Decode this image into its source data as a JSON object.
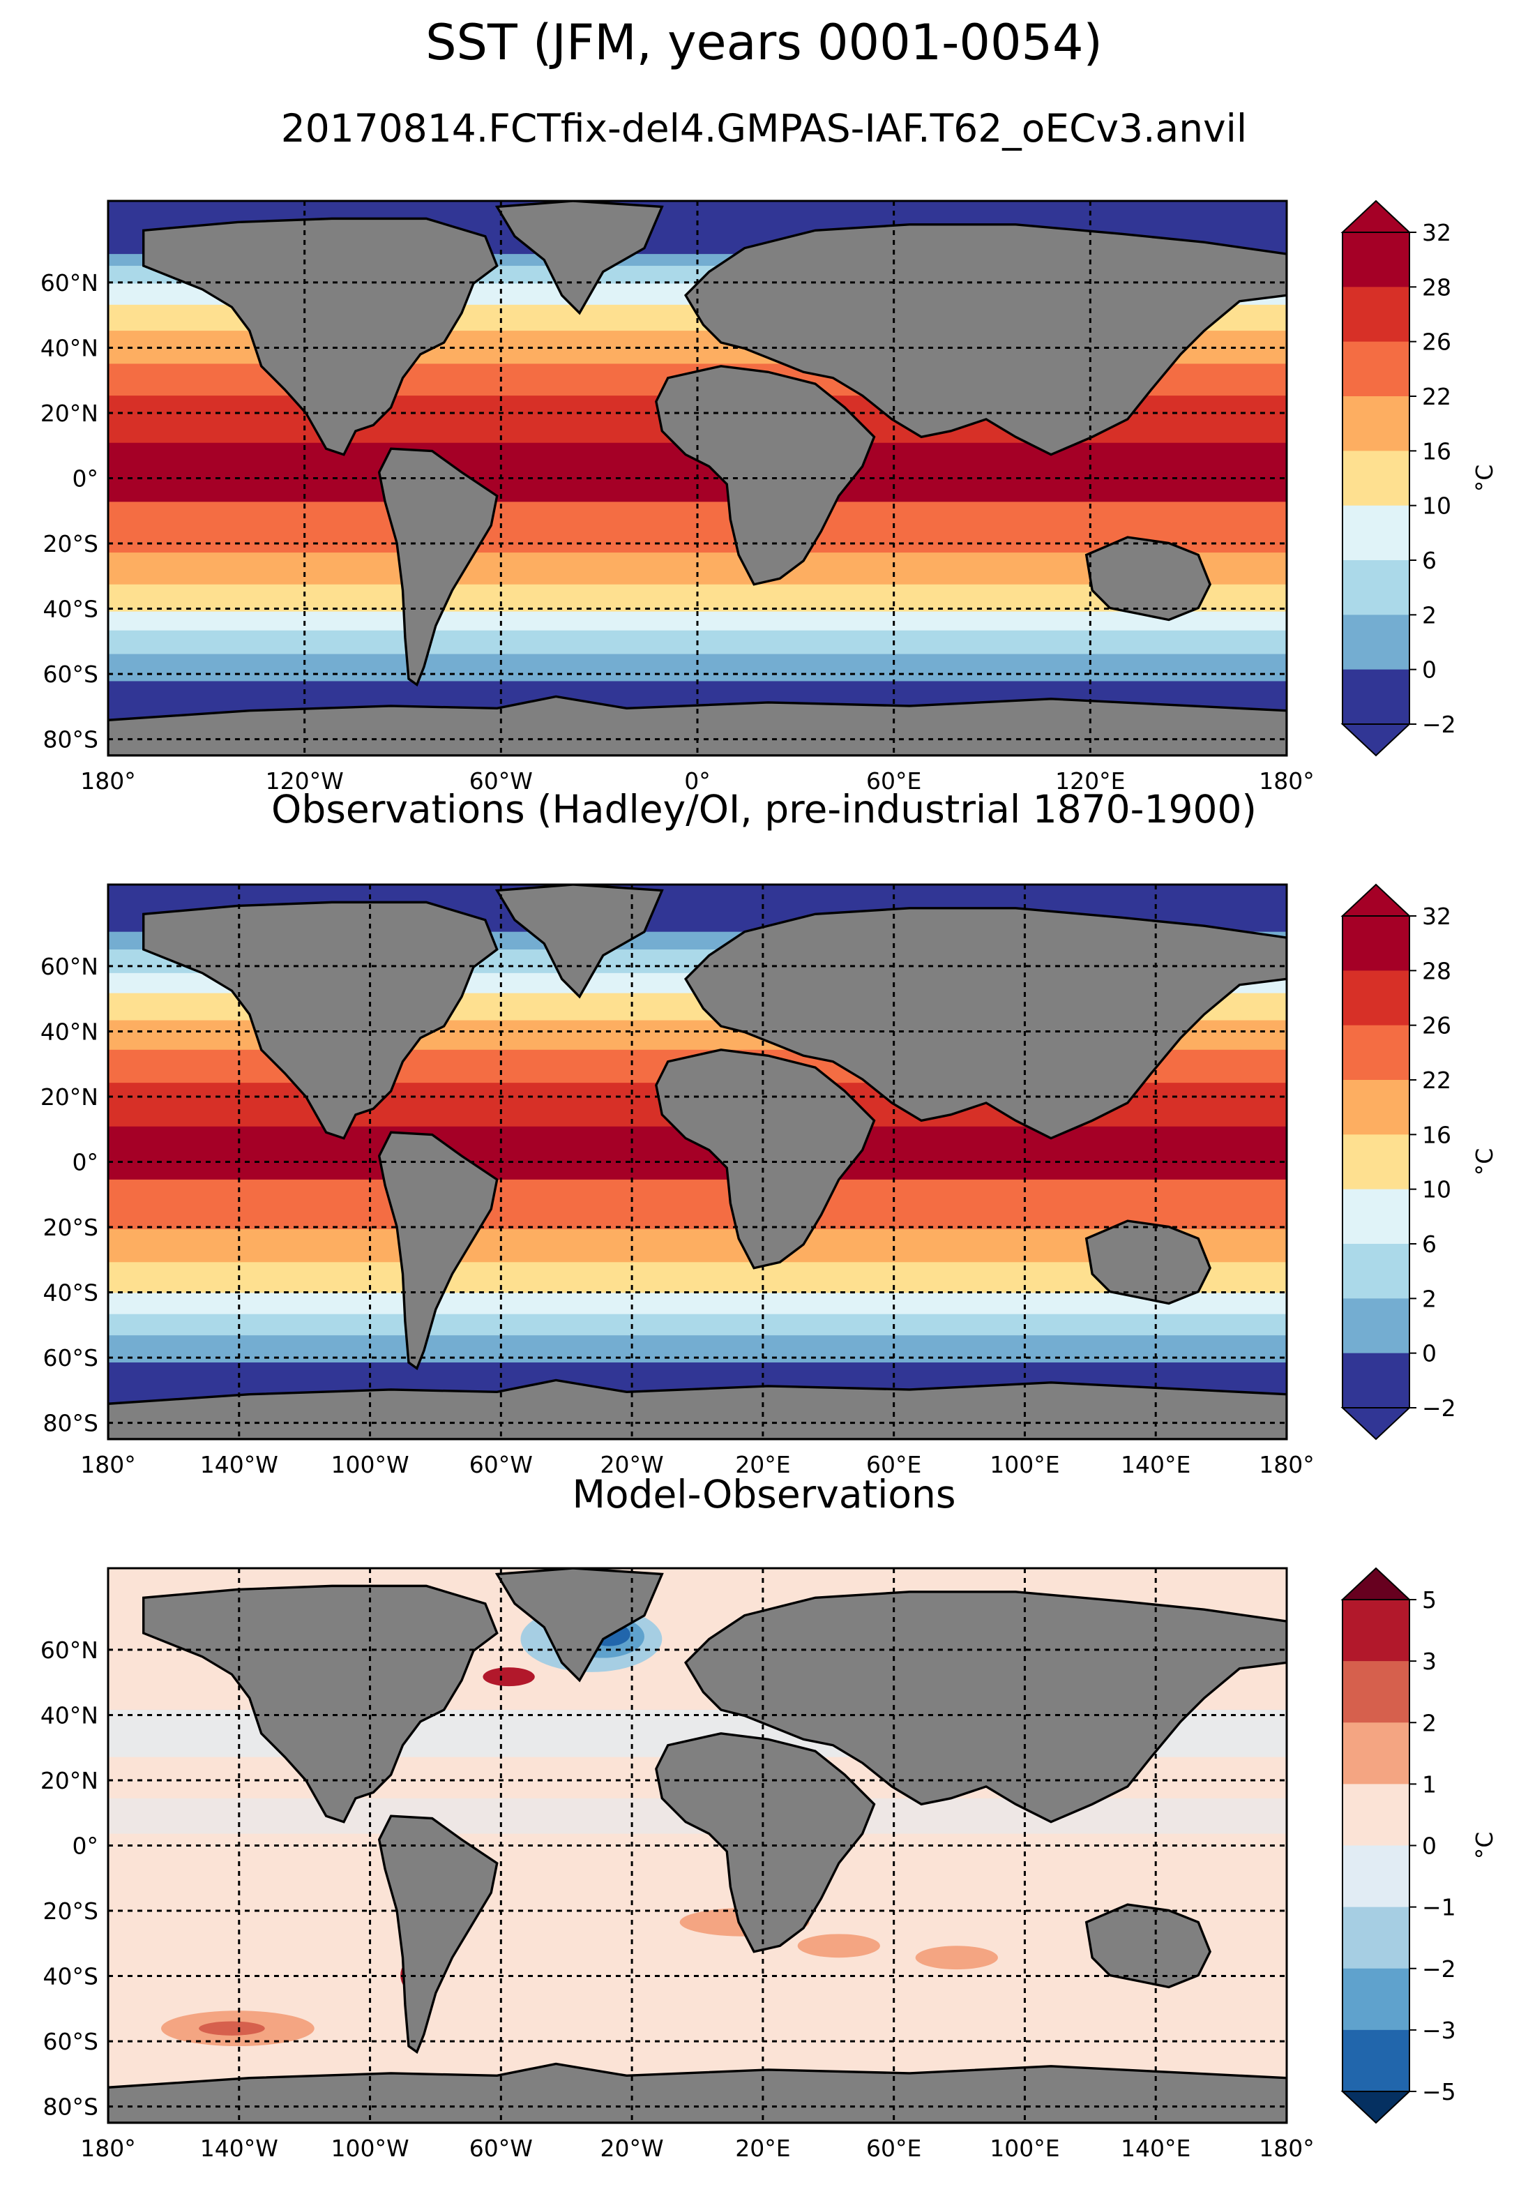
{
  "figure": {
    "title": "SST (JFM, years 0001-0054)",
    "subtitle": "20170814.FCTfix-del4.GMPAS-IAF.T62_oECv3.anvil",
    "land_color": "#808080"
  },
  "panels": [
    {
      "id": "model",
      "title": "",
      "lat_ticks": [
        "60°N",
        "40°N",
        "20°N",
        "0°",
        "20°S",
        "40°S",
        "60°S",
        "80°S"
      ],
      "lon_ticks": [
        "180°",
        "120°W",
        "60°W",
        "0°",
        "60°E",
        "120°E",
        "180°"
      ],
      "colorbar": {
        "unit": "°C",
        "levels": [
          "32",
          "28",
          "26",
          "22",
          "16",
          "10",
          "6",
          "2",
          "0",
          "−2"
        ],
        "colors": [
          "#a50026",
          "#d73027",
          "#f46d43",
          "#fdae61",
          "#fee090",
          "#e0f3f8",
          "#abd9e9",
          "#74add1",
          "#313695"
        ],
        "extend": "both"
      }
    },
    {
      "id": "obs",
      "title": "Observations (Hadley/OI, pre-industrial 1870-1900)",
      "lat_ticks": [
        "60°N",
        "40°N",
        "20°N",
        "0°",
        "20°S",
        "40°S",
        "60°S",
        "80°S"
      ],
      "lon_ticks": [
        "180°",
        "140°W",
        "100°W",
        "60°W",
        "20°W",
        "20°E",
        "60°E",
        "100°E",
        "140°E",
        "180°"
      ],
      "colorbar": {
        "unit": "°C",
        "levels": [
          "32",
          "28",
          "26",
          "22",
          "16",
          "10",
          "6",
          "2",
          "0",
          "−2"
        ],
        "colors": [
          "#a50026",
          "#d73027",
          "#f46d43",
          "#fdae61",
          "#fee090",
          "#e0f3f8",
          "#abd9e9",
          "#74add1",
          "#313695"
        ],
        "extend": "both"
      }
    },
    {
      "id": "diff",
      "title": "Model-Observations",
      "lat_ticks": [
        "60°N",
        "40°N",
        "20°N",
        "0°",
        "20°S",
        "40°S",
        "60°S",
        "80°S"
      ],
      "lon_ticks": [
        "180°",
        "140°W",
        "100°W",
        "60°W",
        "20°W",
        "20°E",
        "60°E",
        "100°E",
        "140°E",
        "180°"
      ],
      "colorbar": {
        "unit": "°C",
        "levels": [
          "5",
          "3",
          "2",
          "1",
          "0",
          "−1",
          "−2",
          "−3",
          "−5"
        ],
        "colors": [
          "#b2182b",
          "#d6604d",
          "#f4a582",
          "#fbe3d6",
          "#e1ecf4",
          "#a6cee3",
          "#5fa2cd",
          "#2166ac"
        ],
        "extend": "both"
      }
    }
  ]
}
